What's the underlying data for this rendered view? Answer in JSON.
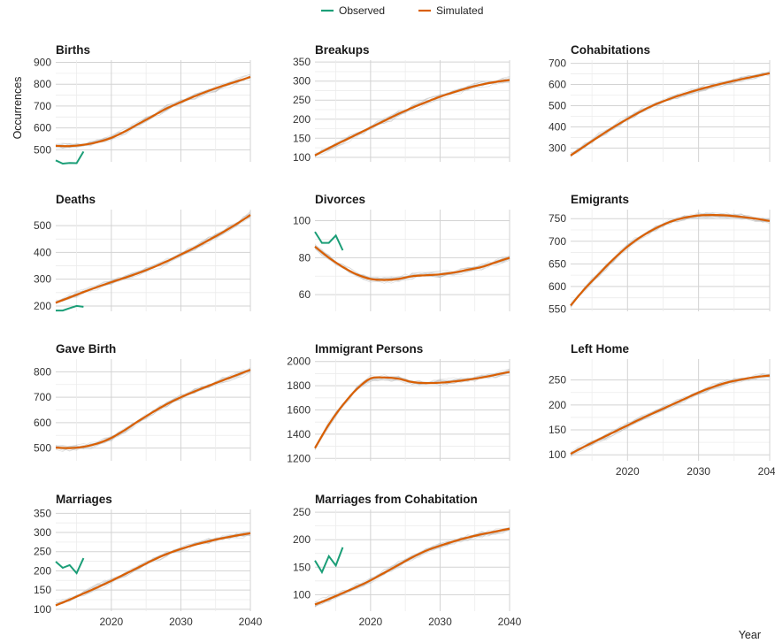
{
  "legend": [
    {
      "label": "Observed",
      "color": "#1b9e77"
    },
    {
      "label": "Simulated",
      "color": "#d95f02"
    }
  ],
  "chart_data": {
    "type": "line",
    "xlabel": "Year",
    "ylabel": "Occurrences",
    "xlim": [
      2012,
      2040
    ],
    "x_ticks": [
      2020,
      2030,
      2040
    ],
    "grid": true,
    "legend_position": "top-center",
    "ensemble_color": "#bbbbbb",
    "panels": [
      {
        "title": "Births",
        "ylim": [
          445,
          910
        ],
        "yticks": [
          500,
          600,
          700,
          800,
          900
        ],
        "observed": {
          "x": [
            2012,
            2013,
            2014,
            2015,
            2016
          ],
          "y": [
            452,
            437,
            440,
            439,
            492
          ]
        },
        "simulated": {
          "x": [
            2012,
            2014,
            2016,
            2018,
            2020,
            2022,
            2024,
            2026,
            2028,
            2030,
            2032,
            2034,
            2036,
            2038,
            2040
          ],
          "y": [
            518,
            517,
            523,
            535,
            555,
            585,
            620,
            655,
            690,
            718,
            745,
            770,
            792,
            812,
            833
          ]
        }
      },
      {
        "title": "Breakups",
        "ylim": [
          88,
          355
        ],
        "yticks": [
          100,
          150,
          200,
          250,
          300,
          350
        ],
        "observed": null,
        "simulated": {
          "x": [
            2012,
            2014,
            2016,
            2018,
            2020,
            2022,
            2024,
            2026,
            2028,
            2030,
            2032,
            2034,
            2036,
            2038,
            2040
          ],
          "y": [
            105,
            124,
            142,
            160,
            178,
            196,
            214,
            230,
            245,
            259,
            271,
            282,
            291,
            298,
            303
          ]
        }
      },
      {
        "title": "Cohabitations",
        "ylim": [
          235,
          715
        ],
        "yticks": [
          300,
          400,
          500,
          600,
          700
        ],
        "observed": null,
        "simulated": {
          "x": [
            2012,
            2014,
            2016,
            2018,
            2020,
            2022,
            2024,
            2026,
            2028,
            2030,
            2032,
            2034,
            2036,
            2038,
            2040
          ],
          "y": [
            265,
            310,
            355,
            398,
            438,
            475,
            507,
            533,
            556,
            576,
            594,
            610,
            625,
            639,
            653
          ]
        }
      },
      {
        "title": "Deaths",
        "ylim": [
          180,
          560
        ],
        "yticks": [
          200,
          300,
          400,
          500
        ],
        "observed": {
          "x": [
            2012,
            2013,
            2014,
            2015,
            2016
          ],
          "y": [
            183,
            183,
            192,
            200,
            197
          ]
        },
        "simulated": {
          "x": [
            2012,
            2014,
            2016,
            2018,
            2020,
            2022,
            2024,
            2026,
            2028,
            2030,
            2032,
            2034,
            2036,
            2038,
            2040
          ],
          "y": [
            212,
            232,
            252,
            271,
            289,
            306,
            324,
            344,
            367,
            392,
            418,
            446,
            475,
            506,
            540
          ]
        }
      },
      {
        "title": "Divorces",
        "ylim": [
          51,
          106
        ],
        "yticks": [
          60,
          80,
          100
        ],
        "observed": {
          "x": [
            2012,
            2013,
            2014,
            2015,
            2016
          ],
          "y": [
            94,
            88,
            88,
            92,
            84
          ]
        },
        "simulated": {
          "x": [
            2012,
            2014,
            2016,
            2018,
            2020,
            2022,
            2024,
            2026,
            2028,
            2030,
            2032,
            2034,
            2036,
            2038,
            2040
          ],
          "y": [
            86,
            80,
            75,
            71,
            68.5,
            68,
            68.5,
            70,
            70.5,
            71,
            72,
            73.5,
            75,
            77.5,
            80
          ]
        }
      },
      {
        "title": "Emigrants",
        "ylim": [
          545,
          770
        ],
        "yticks": [
          550,
          600,
          650,
          700,
          750
        ],
        "observed": null,
        "simulated": {
          "x": [
            2012,
            2014,
            2016,
            2018,
            2020,
            2022,
            2024,
            2026,
            2028,
            2030,
            2032,
            2034,
            2036,
            2038,
            2040
          ],
          "y": [
            558,
            595,
            628,
            660,
            688,
            711,
            729,
            743,
            752,
            757,
            758,
            757,
            754,
            750,
            745
          ]
        }
      },
      {
        "title": "Gave Birth",
        "ylim": [
          450,
          850
        ],
        "yticks": [
          500,
          600,
          700,
          800
        ],
        "observed": null,
        "simulated": {
          "x": [
            2012,
            2014,
            2016,
            2018,
            2020,
            2022,
            2024,
            2026,
            2028,
            2030,
            2032,
            2034,
            2036,
            2038,
            2040
          ],
          "y": [
            502,
            500,
            505,
            518,
            540,
            572,
            608,
            642,
            673,
            700,
            723,
            745,
            766,
            787,
            808
          ]
        }
      },
      {
        "title": "Immigrant Persons",
        "ylim": [
          1180,
          2020
        ],
        "yticks": [
          1200,
          1400,
          1600,
          1800,
          2000
        ],
        "observed": null,
        "simulated": {
          "x": [
            2012,
            2014,
            2016,
            2018,
            2020,
            2022,
            2024,
            2026,
            2028,
            2030,
            2032,
            2034,
            2036,
            2038,
            2040
          ],
          "y": [
            1285,
            1480,
            1640,
            1770,
            1860,
            1868,
            1858,
            1830,
            1822,
            1825,
            1835,
            1850,
            1868,
            1890,
            1915
          ]
        }
      },
      {
        "title": "Left Home",
        "ylim": [
          88,
          292
        ],
        "yticks": [
          100,
          150,
          200,
          250
        ],
        "observed": null,
        "simulated": {
          "x": [
            2012,
            2014,
            2016,
            2018,
            2020,
            2022,
            2024,
            2026,
            2028,
            2030,
            2032,
            2034,
            2036,
            2038,
            2040
          ],
          "y": [
            102,
            117,
            131,
            145,
            159,
            173,
            186,
            199,
            212,
            225,
            236,
            245,
            251,
            256,
            259
          ]
        }
      },
      {
        "title": "Marriages",
        "ylim": [
          95,
          360
        ],
        "yticks": [
          100,
          150,
          200,
          250,
          300,
          350
        ],
        "observed": {
          "x": [
            2012,
            2013,
            2014,
            2015,
            2016
          ],
          "y": [
            224,
            208,
            215,
            194,
            233
          ]
        },
        "simulated": {
          "x": [
            2012,
            2014,
            2016,
            2018,
            2020,
            2022,
            2024,
            2026,
            2028,
            2030,
            2032,
            2034,
            2036,
            2038,
            2040
          ],
          "y": [
            110,
            125,
            141,
            157,
            174,
            192,
            210,
            228,
            244,
            257,
            268,
            277,
            285,
            292,
            298
          ]
        }
      },
      {
        "title": "Marriages from Cohabitation",
        "ylim": [
          70,
          255
        ],
        "yticks": [
          100,
          150,
          200,
          250
        ],
        "observed": {
          "x": [
            2012,
            2013,
            2014,
            2015,
            2016
          ],
          "y": [
            162,
            141,
            170,
            153,
            186
          ]
        },
        "simulated": {
          "x": [
            2012,
            2014,
            2016,
            2018,
            2020,
            2022,
            2024,
            2026,
            2028,
            2030,
            2032,
            2034,
            2036,
            2038,
            2040
          ],
          "y": [
            82,
            92,
            103,
            114,
            126,
            140,
            154,
            168,
            180,
            189,
            197,
            204,
            210,
            215,
            220
          ]
        }
      }
    ]
  }
}
